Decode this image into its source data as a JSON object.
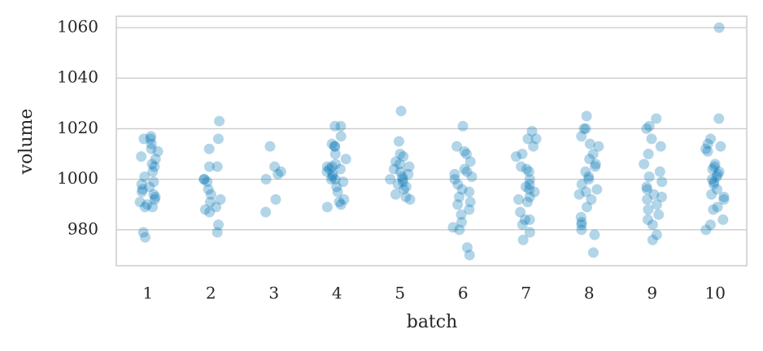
{
  "chart_data": {
    "type": "strip",
    "xlabel": "batch",
    "ylabel": "volume",
    "categories": [
      "1",
      "2",
      "3",
      "4",
      "5",
      "6",
      "7",
      "8",
      "9",
      "10"
    ],
    "values": [
      [
        1017,
        1016,
        1016,
        1011,
        1014,
        1012,
        1009,
        1008,
        1006,
        1005,
        1003,
        1001,
        999,
        998,
        997,
        996,
        995,
        994,
        993,
        992,
        991,
        990,
        989,
        989,
        979,
        977
      ],
      [
        1023,
        1016,
        1012,
        1005,
        1005,
        1000,
        1000,
        999,
        996,
        994,
        992,
        991,
        989,
        988,
        987,
        982,
        979
      ],
      [
        1013,
        1005,
        1003,
        1002,
        1000,
        992,
        987
      ],
      [
        1021,
        1021,
        1017,
        1014,
        1013,
        1013,
        1010,
        1008,
        1006,
        1005,
        1005,
        1004,
        1004,
        1003,
        1002,
        1001,
        1000,
        1000,
        999,
        997,
        995,
        992,
        991,
        990,
        989
      ],
      [
        1027,
        1015,
        1010,
        1009,
        1007,
        1006,
        1005,
        1004,
        1003,
        1002,
        1001,
        1000,
        1000,
        999,
        998,
        997,
        996,
        994,
        993,
        992
      ],
      [
        1021,
        1013,
        1011,
        1010,
        1007,
        1004,
        1003,
        1002,
        1001,
        1000,
        998,
        996,
        995,
        993,
        991,
        990,
        988,
        986,
        983,
        981,
        980,
        973,
        970
      ],
      [
        1019,
        1016,
        1016,
        1013,
        1010,
        1009,
        1005,
        1004,
        1003,
        1000,
        998,
        997,
        996,
        995,
        993,
        992,
        991,
        987,
        984,
        984,
        982,
        979,
        976
      ],
      [
        1025,
        1020,
        1020,
        1017,
        1014,
        1013,
        1010,
        1008,
        1006,
        1005,
        1003,
        1001,
        1000,
        998,
        996,
        995,
        994,
        992,
        989,
        985,
        983,
        982,
        980,
        978,
        971
      ],
      [
        1024,
        1021,
        1020,
        1016,
        1013,
        1010,
        1006,
        1003,
        1001,
        999,
        997,
        996,
        994,
        993,
        992,
        990,
        988,
        986,
        984,
        982,
        978,
        976
      ],
      [
        1060,
        1024,
        1016,
        1014,
        1013,
        1012,
        1011,
        1006,
        1005,
        1004,
        1003,
        1002,
        1001,
        1000,
        999,
        998,
        996,
        994,
        993,
        992,
        989,
        988,
        984,
        982,
        980
      ]
    ],
    "color": "#0173b2",
    "ylim": [
      965.8,
      1064.5
    ],
    "yticks": [
      980,
      1000,
      1020,
      1040,
      1060
    ],
    "grid": true
  }
}
